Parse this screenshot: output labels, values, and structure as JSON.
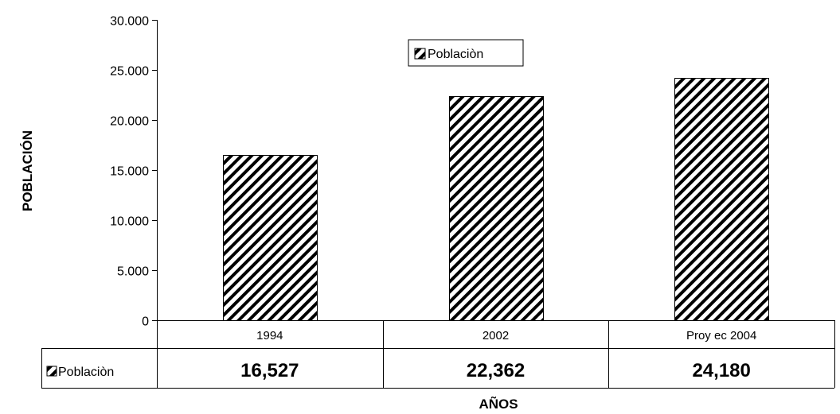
{
  "chart_data": {
    "type": "bar",
    "categories": [
      "1994",
      "2002",
      "Proy ec 2004"
    ],
    "series": [
      {
        "name": "Poblaciòn",
        "values": [
          16527,
          22362,
          24180
        ]
      }
    ],
    "value_labels": [
      "16,527",
      "22,362",
      "24,180"
    ],
    "ylabel": "POBLACIÓN",
    "xlabel": "AÑOS",
    "ylim": [
      0,
      30000
    ],
    "yticks": [
      0,
      5000,
      10000,
      15000,
      20000,
      25000,
      30000
    ],
    "ytick_labels": [
      "0",
      "5.000",
      "10.000",
      "15.000",
      "20.000",
      "25.000",
      "30.000"
    ],
    "grid": false,
    "legend": {
      "label": "Poblaciòn",
      "position": "top-center"
    },
    "data_table": true,
    "colors": {
      "bar_fill": "#ffffff",
      "bar_hatch": "#000000",
      "line": "#000000"
    }
  }
}
